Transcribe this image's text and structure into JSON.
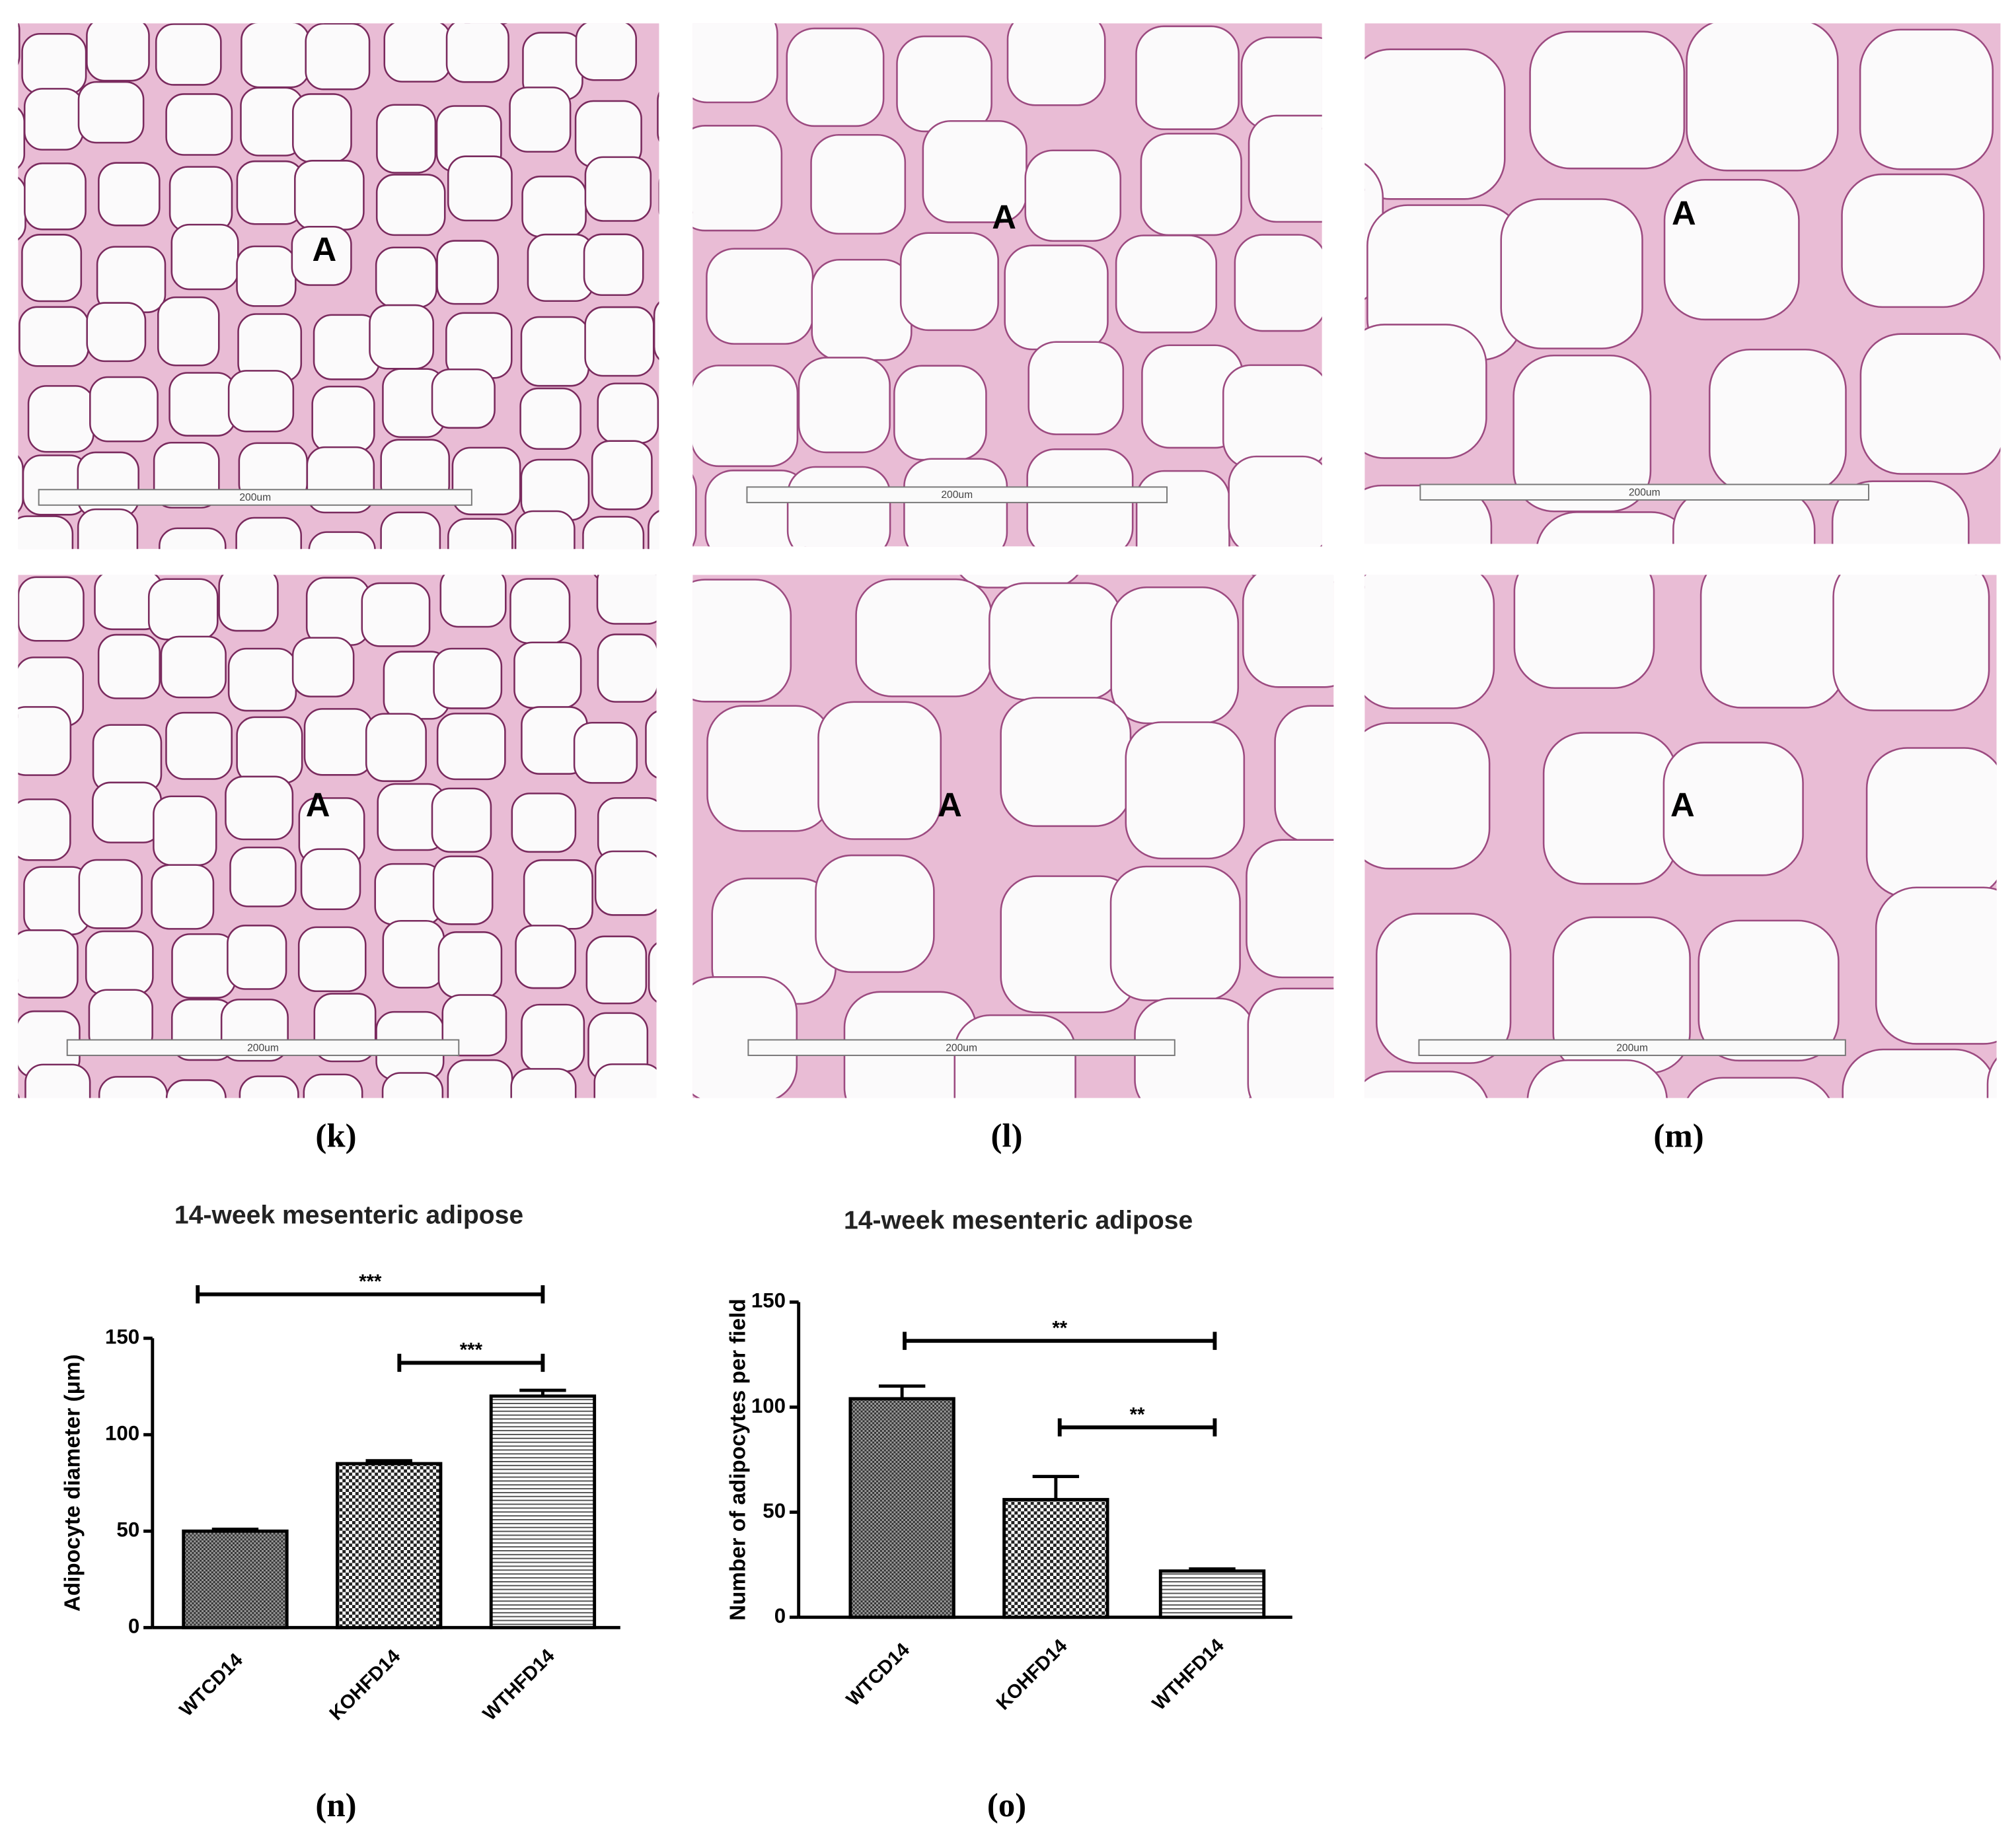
{
  "panels": {
    "micrographs": [
      {
        "marker": "A",
        "scale_bar": "200um"
      },
      {
        "marker": "A",
        "scale_bar": "200um"
      },
      {
        "marker": "A",
        "scale_bar": "200um"
      },
      {
        "marker": "A",
        "scale_bar": "200um"
      },
      {
        "marker": "A",
        "scale_bar": "200um"
      },
      {
        "marker": "A",
        "scale_bar": "200um"
      }
    ],
    "labels": [
      "(k)",
      "(l)",
      "(m)",
      "(n)",
      "(o)"
    ]
  },
  "chart_data": [
    {
      "type": "bar",
      "title": "14-week mesenteric adipose",
      "y_label": "Adipocyte diameter (μm)",
      "categories": [
        "WTCD14",
        "KOHFD14",
        "WTHFD14"
      ],
      "values": [
        50,
        85,
        120
      ],
      "errors": [
        1,
        1.5,
        3
      ],
      "color": "#000000",
      "patterns": [
        "dense",
        "checker",
        "hlines"
      ],
      "ylim": [
        0,
        150
      ],
      "yticks": [
        0,
        50,
        100,
        150
      ],
      "annotations": [
        {
          "text": "***"
        },
        {
          "text": "***"
        }
      ]
    },
    {
      "type": "bar",
      "title": "14-week mesenteric adipose",
      "y_label": "Number of adipocytes per field",
      "categories": [
        "WTCD14",
        "KOHFD14",
        "WTHFD14"
      ],
      "values": [
        104,
        56,
        22
      ],
      "errors": [
        6,
        11,
        1
      ],
      "color": "#000000",
      "patterns": [
        "dense",
        "checker",
        "hlines"
      ],
      "ylim": [
        0,
        150
      ],
      "yticks": [
        0,
        50,
        100,
        150
      ],
      "annotations": [
        {
          "text": "**"
        },
        {
          "text": "**"
        }
      ]
    }
  ]
}
